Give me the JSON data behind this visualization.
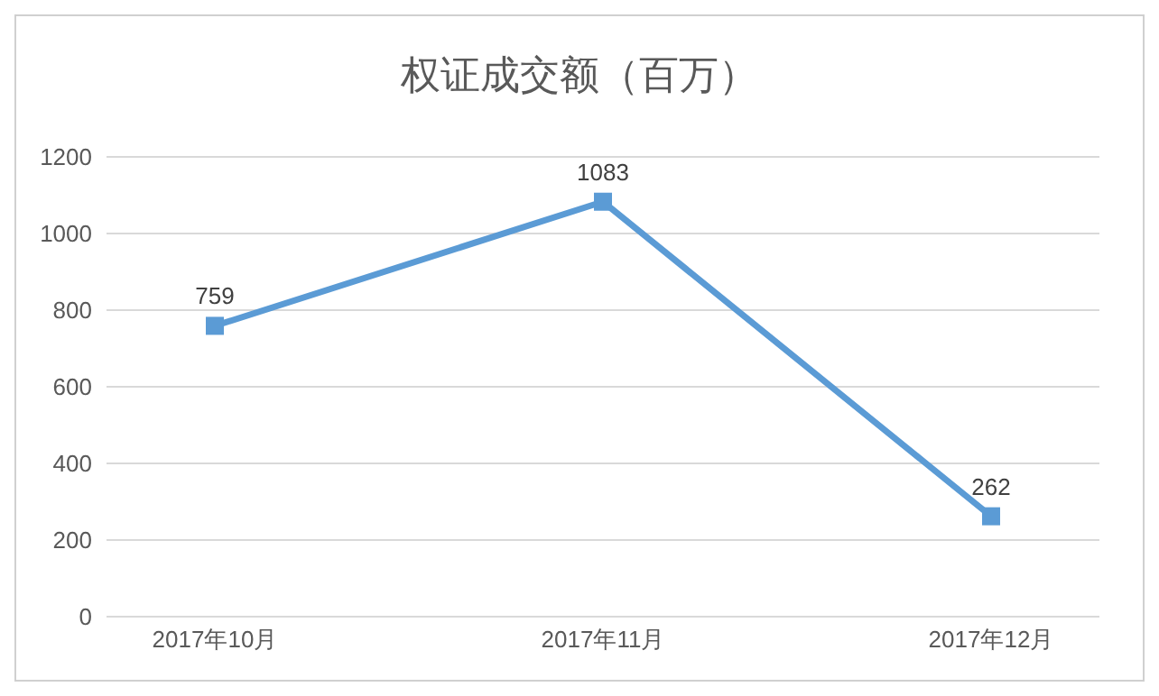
{
  "chart_data": {
    "type": "line",
    "title": "权证成交额（百万）",
    "categories": [
      "2017年10月",
      "2017年11月",
      "2017年12月"
    ],
    "series": [
      {
        "color": "#5b9bd5",
        "values": [
          759,
          1083,
          262
        ]
      }
    ],
    "ylim": [
      0,
      1200
    ],
    "yticks": [
      0,
      200,
      400,
      600,
      800,
      1000,
      1200
    ],
    "grid": "y",
    "marker": "square",
    "data_labels": true
  }
}
